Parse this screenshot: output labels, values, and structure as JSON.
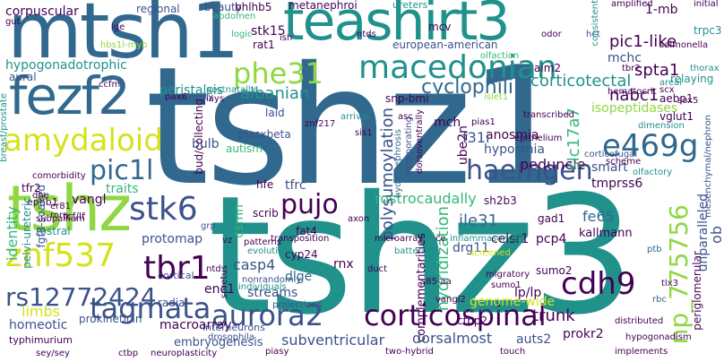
{
  "palette": {
    "dark_purple": "#440154",
    "indigo": "#3b528b",
    "blue": "#31688e",
    "teal": "#21918c",
    "green": "#35b779",
    "lime": "#90d743",
    "yellow": "#d5e21a"
  },
  "words": {
    "w001": "tshz1",
    "w002": "tshz3",
    "w003": "mtsh1",
    "w004": "teashirt3",
    "w005": "fezf2",
    "w006": "tshz",
    "w007": "macedonian",
    "w008": "phe31",
    "w009": "amydaloid",
    "w010": "e469g",
    "w011": "haemgen",
    "w012": "pic1l",
    "w013": "stk6",
    "w014": "pujo",
    "w015": "znf537",
    "w016": "tbr1",
    "w017": "rs12772424",
    "w018": "tagmata",
    "w019": "aurora2",
    "w020": "corticospinal",
    "w021": "cdh9",
    "w022": "np_775756",
    "w023": "corticotectal",
    "w024": "cyclophilin",
    "w025": "pic1-like",
    "w026": "hypogonadotrophic",
    "w027": "albanian",
    "w028": "polysumoylation",
    "w029": "nabc1",
    "w030": "spta1",
    "w031": "isopeptidases",
    "w032": "hyposmia",
    "w033": "peduncle",
    "w034": "anosmia",
    "w035": "f31i",
    "w036": "mch",
    "w037": "smart",
    "w038": "tmprss6",
    "w039": "slc17a7",
    "w040": "ile31",
    "w041": "hydridization",
    "w042": "rostrocaudally",
    "w043": "fe65",
    "w044": "kallmann",
    "w045": "pcp4",
    "w046": "drg11",
    "w047": "celsr1",
    "w048": "complementarities",
    "w049": "trunk",
    "w050": "lp/lp",
    "w051": "prokr2",
    "w052": "auts2",
    "w053": "dorsalmost",
    "w054": "subventricular",
    "w055": "embryogenesis",
    "w056": "macroarray",
    "w057": "streams",
    "w058": "protomap",
    "w059": "casp4",
    "w060": "dlge",
    "w061": "rnx",
    "w062": "cyp24",
    "w063": "csmn",
    "w064": "tfrc",
    "w065": "hfe",
    "w066": "bulb",
    "w067": "autism",
    "w068": "piasxbeta",
    "w069": "laid",
    "w070": "stk15",
    "w071": "rat1",
    "w072": "mchc",
    "w073": "aim2",
    "w074": "snp-bmi",
    "w075": "european-american",
    "w076": "mcv",
    "w077": "peristalsis",
    "w078": "aural",
    "w079": "vangl",
    "w080": "identity",
    "w081": "limbs",
    "w082": "homeotic",
    "w083": "prokineticin",
    "w084": "typhimurium",
    "w085": "tcf/lf",
    "w086": "rostral",
    "w087": "traits",
    "w088": "tfr2",
    "w089": "ephb1",
    "w090": "fgf8-soaked",
    "w091": "pelvi-ureteric",
    "w092": "enc1",
    "w093": "radial",
    "w094": "genome-wide",
    "w095": "sumo2",
    "w096": "gad1",
    "w097": "sh2b3",
    "w098": "ube2n",
    "w099": "aebp1",
    "w100": "relaying",
    "w101": "vglut1",
    "w102": "1-mb",
    "w103": "corpuscular",
    "w104": "regional",
    "w105": "beauty",
    "w106": "bhlhb5",
    "w107": "metanephroi",
    "w108": "ctbp2",
    "w109": "periglomerular",
    "w110": "unparalleled",
    "w111": "ob",
    "w112": "interneurons",
    "w113": "drosophila",
    "w114": "ureters",
    "w115": "abdomen",
    "w116": "initial",
    "w117": "amplified",
    "w118": "trpc3",
    "w119": "thorax",
    "w120": "hct",
    "w121": "odor",
    "w122": "consistent",
    "w123": "olfaction",
    "w124": "hbs1l-myb",
    "w125": "gut",
    "w126": "ntds",
    "w127": "logic",
    "w128": "ish",
    "w129": "postnatally",
    "w130": "polarity",
    "w131": "pax6",
    "w132": "salmonella",
    "w133": "tbr2",
    "w134": "areal",
    "w135": "sox5",
    "w136": "hematocrit",
    "w137": "scx",
    "w138": "islet1",
    "w139": "transcribed",
    "w140": "breast/prostate",
    "w141": "epithelium",
    "w142": "corticofugal",
    "w143": "scheme",
    "w144": "mesenchymal/nephron",
    "w145": "olfactory",
    "w146": "pias1",
    "w147": "dorsoventrally",
    "w148": "incorporating",
    "w149": "hydronephrosis",
    "w150": "arrival",
    "w151": "znf217",
    "w152": "bud/collecting",
    "w153": "comorbidity",
    "w154": "subpallium",
    "w155": "er81",
    "w156": "dhe",
    "w157": "rora",
    "w158": "lge",
    "w159": "grp",
    "w160": "patterns",
    "w161": "evolution",
    "w162": "transposition",
    "w163": "axon",
    "w164": "microarray",
    "w165": "inflammasomes",
    "w166": "ce",
    "w167": "screened",
    "w168": "ptb",
    "w169": "scrib",
    "w170": "fat4",
    "w171": "vz",
    "w172": "cortical",
    "w173": "ntd",
    "w174": "spretus",
    "w175": "individuals",
    "w176": "projections",
    "w177": "nonrandomly",
    "w178": "duct",
    "w179": "sumo1",
    "w180": "migratory",
    "w181": "s85-aa",
    "w182": "tlx3",
    "w183": "rbc",
    "w184": "piasy",
    "w185": "candidate",
    "w186": "vangl2",
    "w187": "touch",
    "w188": "two-hybrid",
    "w189": "distributed",
    "w190": "hypogonadism",
    "w191": "implements",
    "w192": "ctbp",
    "w193": "neuroplasticity",
    "w194": "sey/sey",
    "w195": "lays",
    "w196": "dimension",
    "w197": "batteries",
    "w198": "ccfm",
    "w199": "asc",
    "w200": "sis1"
  }
}
